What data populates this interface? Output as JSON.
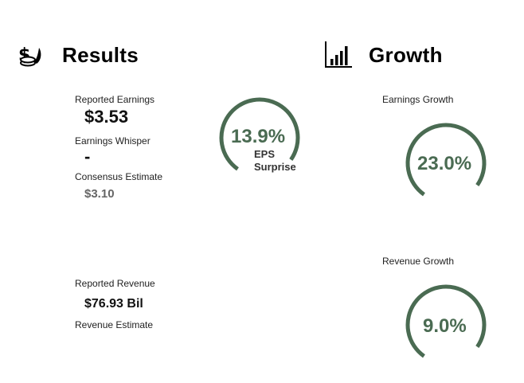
{
  "results": {
    "title": "Results",
    "icon": "money-bag-coins-icon",
    "reported_earnings": {
      "label": "Reported Earnings",
      "value": "$3.53"
    },
    "earnings_whisper": {
      "label": "Earnings Whisper",
      "value": "-"
    },
    "consensus_estimate": {
      "label": "Consensus Estimate",
      "value": "$3.10"
    },
    "eps_surprise": {
      "value": "13.9%",
      "caption_line1": "EPS",
      "caption_line2": "Surprise",
      "fraction": 0.75
    },
    "reported_revenue": {
      "label": "Reported Revenue",
      "value": "$76.93 Bil"
    },
    "revenue_estimate": {
      "label": "Revenue Estimate"
    }
  },
  "growth": {
    "title": "Growth",
    "icon": "bar-chart-icon",
    "earnings_growth": {
      "label": "Earnings Growth",
      "value": "23.0%",
      "fraction": 0.75
    },
    "revenue_growth": {
      "label": "Revenue Growth",
      "value": "9.0%",
      "fraction": 0.75
    }
  },
  "colors": {
    "gauge": "#4a6b52",
    "title": "#000000",
    "muted": "#666666"
  }
}
